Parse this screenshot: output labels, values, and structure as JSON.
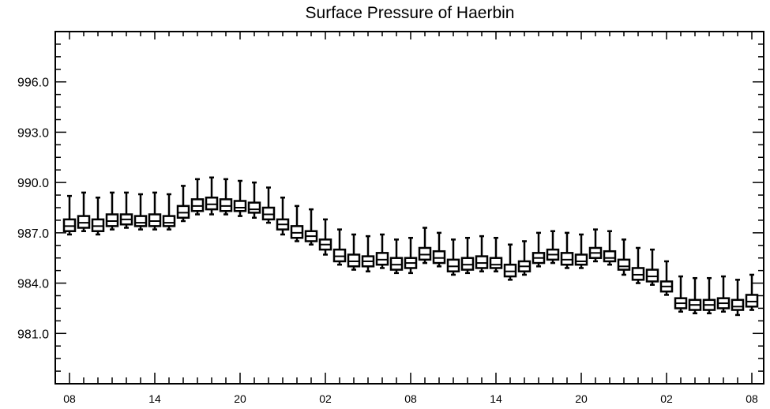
{
  "chart_data": {
    "type": "box",
    "title": "Surface Pressure of Haerbin",
    "xlabel": "",
    "ylabel": "",
    "ylim": [
      978.0,
      999.0
    ],
    "y_ticks": [
      "981.0",
      "984.0",
      "987.0",
      "990.0",
      "993.0",
      "996.0"
    ],
    "x_tick_labels": [
      "08",
      "14",
      "20",
      "02",
      "08",
      "14",
      "20",
      "02",
      "08"
    ],
    "x_tick_every": 6,
    "x_minor_every": 1,
    "boxes": [
      {
        "x": 0,
        "min": 986.9,
        "q1": 987.1,
        "median": 987.4,
        "q3": 987.8,
        "max": 989.2
      },
      {
        "x": 1,
        "min": 987.1,
        "q1": 987.3,
        "median": 987.6,
        "q3": 988.0,
        "max": 989.4
      },
      {
        "x": 2,
        "min": 986.9,
        "q1": 987.1,
        "median": 987.4,
        "q3": 987.8,
        "max": 989.1
      },
      {
        "x": 3,
        "min": 987.2,
        "q1": 987.4,
        "median": 987.7,
        "q3": 988.1,
        "max": 989.4
      },
      {
        "x": 4,
        "min": 987.3,
        "q1": 987.5,
        "median": 987.8,
        "q3": 988.1,
        "max": 989.4
      },
      {
        "x": 5,
        "min": 987.2,
        "q1": 987.4,
        "median": 987.6,
        "q3": 988.0,
        "max": 989.3
      },
      {
        "x": 6,
        "min": 987.2,
        "q1": 987.4,
        "median": 987.7,
        "q3": 988.1,
        "max": 989.4
      },
      {
        "x": 7,
        "min": 987.2,
        "q1": 987.4,
        "median": 987.6,
        "q3": 988.0,
        "max": 989.3
      },
      {
        "x": 8,
        "min": 987.7,
        "q1": 987.9,
        "median": 988.2,
        "q3": 988.6,
        "max": 989.8
      },
      {
        "x": 9,
        "min": 988.1,
        "q1": 988.3,
        "median": 988.6,
        "q3": 989.0,
        "max": 990.2
      },
      {
        "x": 10,
        "min": 988.1,
        "q1": 988.4,
        "median": 988.7,
        "q3": 989.1,
        "max": 990.3
      },
      {
        "x": 11,
        "min": 988.1,
        "q1": 988.3,
        "median": 988.6,
        "q3": 989.0,
        "max": 990.2
      },
      {
        "x": 12,
        "min": 988.0,
        "q1": 988.3,
        "median": 988.5,
        "q3": 988.9,
        "max": 990.1
      },
      {
        "x": 13,
        "min": 987.9,
        "q1": 988.2,
        "median": 988.4,
        "q3": 988.8,
        "max": 990.0
      },
      {
        "x": 14,
        "min": 987.6,
        "q1": 987.8,
        "median": 988.1,
        "q3": 988.5,
        "max": 989.7
      },
      {
        "x": 15,
        "min": 986.9,
        "q1": 987.2,
        "median": 987.5,
        "q3": 987.8,
        "max": 989.1
      },
      {
        "x": 16,
        "min": 986.5,
        "q1": 986.7,
        "median": 987.0,
        "q3": 987.4,
        "max": 988.6
      },
      {
        "x": 17,
        "min": 986.3,
        "q1": 986.5,
        "median": 986.8,
        "q3": 987.1,
        "max": 988.4
      },
      {
        "x": 18,
        "min": 985.7,
        "q1": 986.0,
        "median": 986.3,
        "q3": 986.6,
        "max": 987.8
      },
      {
        "x": 19,
        "min": 985.1,
        "q1": 985.3,
        "median": 985.6,
        "q3": 986.0,
        "max": 987.2
      },
      {
        "x": 20,
        "min": 984.8,
        "q1": 985.0,
        "median": 985.3,
        "q3": 985.7,
        "max": 986.9
      },
      {
        "x": 21,
        "min": 984.7,
        "q1": 985.0,
        "median": 985.3,
        "q3": 985.6,
        "max": 986.8
      },
      {
        "x": 22,
        "min": 984.9,
        "q1": 985.1,
        "median": 985.4,
        "q3": 985.8,
        "max": 986.9
      },
      {
        "x": 23,
        "min": 984.6,
        "q1": 984.8,
        "median": 985.1,
        "q3": 985.5,
        "max": 986.6
      },
      {
        "x": 24,
        "min": 984.6,
        "q1": 984.9,
        "median": 985.2,
        "q3": 985.5,
        "max": 986.7
      },
      {
        "x": 25,
        "min": 985.2,
        "q1": 985.4,
        "median": 985.7,
        "q3": 986.1,
        "max": 987.3
      },
      {
        "x": 26,
        "min": 985.0,
        "q1": 985.2,
        "median": 985.5,
        "q3": 985.9,
        "max": 987.0
      },
      {
        "x": 27,
        "min": 984.5,
        "q1": 984.7,
        "median": 985.0,
        "q3": 985.4,
        "max": 986.6
      },
      {
        "x": 28,
        "min": 984.6,
        "q1": 984.8,
        "median": 985.1,
        "q3": 985.5,
        "max": 986.7
      },
      {
        "x": 29,
        "min": 984.7,
        "q1": 984.9,
        "median": 985.2,
        "q3": 985.6,
        "max": 986.8
      },
      {
        "x": 30,
        "min": 984.7,
        "q1": 984.9,
        "median": 985.1,
        "q3": 985.5,
        "max": 986.7
      },
      {
        "x": 31,
        "min": 984.2,
        "q1": 984.4,
        "median": 984.7,
        "q3": 985.1,
        "max": 986.3
      },
      {
        "x": 32,
        "min": 984.5,
        "q1": 984.7,
        "median": 985.0,
        "q3": 985.3,
        "max": 986.5
      },
      {
        "x": 33,
        "min": 985.0,
        "q1": 985.2,
        "median": 985.5,
        "q3": 985.8,
        "max": 987.0
      },
      {
        "x": 34,
        "min": 985.2,
        "q1": 985.4,
        "median": 985.7,
        "q3": 986.0,
        "max": 987.1
      },
      {
        "x": 35,
        "min": 984.9,
        "q1": 985.1,
        "median": 985.4,
        "q3": 985.8,
        "max": 987.0
      },
      {
        "x": 36,
        "min": 984.9,
        "q1": 985.1,
        "median": 985.3,
        "q3": 985.7,
        "max": 986.9
      },
      {
        "x": 37,
        "min": 985.3,
        "q1": 985.5,
        "median": 985.8,
        "q3": 986.1,
        "max": 987.2
      },
      {
        "x": 38,
        "min": 985.1,
        "q1": 985.3,
        "median": 985.5,
        "q3": 985.9,
        "max": 987.1
      },
      {
        "x": 39,
        "min": 984.5,
        "q1": 984.8,
        "median": 985.0,
        "q3": 985.4,
        "max": 986.6
      },
      {
        "x": 40,
        "min": 984.0,
        "q1": 984.2,
        "median": 984.5,
        "q3": 984.9,
        "max": 986.1
      },
      {
        "x": 41,
        "min": 983.9,
        "q1": 984.1,
        "median": 984.4,
        "q3": 984.8,
        "max": 986.0
      },
      {
        "x": 42,
        "min": 983.3,
        "q1": 983.5,
        "median": 983.8,
        "q3": 984.1,
        "max": 985.3
      },
      {
        "x": 43,
        "min": 982.3,
        "q1": 982.5,
        "median": 982.8,
        "q3": 983.1,
        "max": 984.4
      },
      {
        "x": 44,
        "min": 982.2,
        "q1": 982.4,
        "median": 982.7,
        "q3": 983.0,
        "max": 984.3
      },
      {
        "x": 45,
        "min": 982.2,
        "q1": 982.4,
        "median": 982.7,
        "q3": 983.0,
        "max": 984.3
      },
      {
        "x": 46,
        "min": 982.3,
        "q1": 982.5,
        "median": 982.8,
        "q3": 983.1,
        "max": 984.4
      },
      {
        "x": 47,
        "min": 982.1,
        "q1": 982.4,
        "median": 982.6,
        "q3": 983.0,
        "max": 984.2
      },
      {
        "x": 48,
        "min": 982.4,
        "q1": 982.6,
        "median": 982.9,
        "q3": 983.3,
        "max": 984.5
      }
    ],
    "grid": false,
    "legend": "none"
  }
}
